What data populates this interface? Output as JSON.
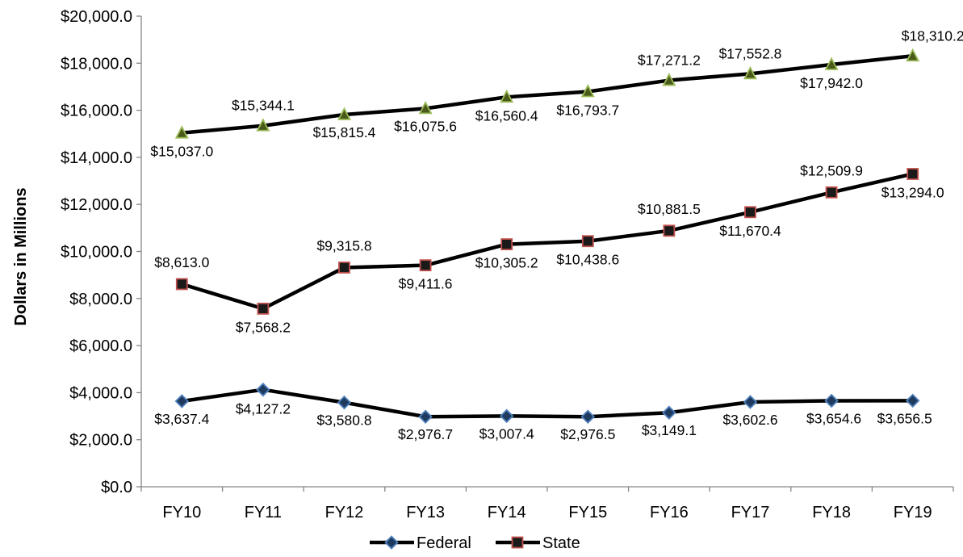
{
  "chart_data": {
    "type": "line",
    "title": "",
    "xlabel": "",
    "ylabel": "Dollars in Millions",
    "categories": [
      "FY10",
      "FY11",
      "FY12",
      "FY13",
      "FY14",
      "FY15",
      "FY16",
      "FY17",
      "FY18",
      "FY19"
    ],
    "ylim": [
      0,
      20000
    ],
    "y_ticks": [
      0,
      2000,
      4000,
      6000,
      8000,
      10000,
      12000,
      14000,
      16000,
      18000,
      20000
    ],
    "y_tick_labels": [
      "$0.0",
      "$2,000.0",
      "$4,000.0",
      "$6,000.0",
      "$8,000.0",
      "$10,000.0",
      "$12,000.0",
      "$14,000.0",
      "$16,000.0",
      "$18,000.0",
      "$20,000.0"
    ],
    "grid": false,
    "legend_position": "bottom",
    "series": [
      {
        "name": "Federal",
        "marker": "diamond",
        "marker_color": "#1f3a5f",
        "marker_edge": "#4f81bd",
        "line_color": "#000000",
        "values": [
          3637.4,
          4127.2,
          3580.8,
          2976.7,
          3007.4,
          2976.5,
          3149.1,
          3602.6,
          3654.6,
          3656.5
        ],
        "labels": [
          "$3,637.4",
          "$4,127.2",
          "$3,580.8",
          "$2,976.7",
          "$3,007.4",
          "$2,976.5",
          "$3,149.1",
          "$3,602.6",
          "$3,654.6",
          "$3,656.5"
        ]
      },
      {
        "name": "State",
        "marker": "square",
        "marker_color": "#1a1a1a",
        "marker_edge": "#c0504d",
        "line_color": "#000000",
        "values": [
          8613.0,
          7568.2,
          9315.8,
          9411.6,
          10305.2,
          10438.6,
          10881.5,
          11670.4,
          12509.9,
          13294.0
        ],
        "labels": [
          "$8,613.0",
          "$7,568.2",
          "$9,315.8",
          "$9,411.6",
          "$10,305.2",
          "$10,438.6",
          "$10,881.5",
          "$11,670.4",
          "$12,509.9",
          "$13,294.0"
        ]
      },
      {
        "marker": "triangle",
        "marker_color": "#4a5a1a",
        "marker_edge": "#9bbb59",
        "line_color": "#000000",
        "values": [
          15037.0,
          15344.1,
          15815.4,
          16075.6,
          16560.4,
          16793.7,
          17271.2,
          17552.8,
          17942.0,
          18310.2
        ],
        "labels": [
          "$15,037.0",
          "$15,344.1",
          "$15,815.4",
          "$16,075.6",
          "$16,560.4",
          "$16,793.7",
          "$17,271.2",
          "$17,552.8",
          "$17,942.0",
          "$18,310.2"
        ]
      }
    ],
    "legend": [
      {
        "label": "Federal",
        "marker": "diamond"
      },
      {
        "label": "State",
        "marker": "square"
      }
    ]
  }
}
